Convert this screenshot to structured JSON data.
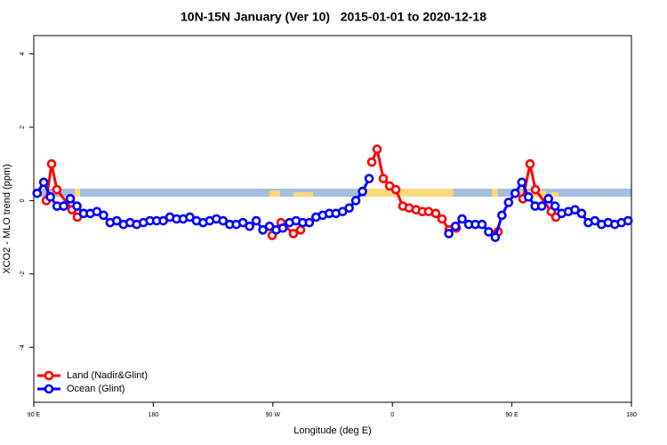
{
  "chart_data": {
    "type": "line",
    "title": "10N-15N January (Ver 10)   2015-01-01 to 2020-12-18",
    "x_label": "Longitude (deg E)",
    "y_label": "XCO2 - MLO trend (ppm)",
    "xlim": [
      90,
      540
    ],
    "ylim": [
      -5.5,
      4.5
    ],
    "xticks": [
      {
        "value": 90,
        "label": "90 E"
      },
      {
        "value": 180,
        "label": "180"
      },
      {
        "value": 270,
        "label": "90 W"
      },
      {
        "value": 360,
        "label": "0"
      },
      {
        "value": 450,
        "label": "90 E"
      },
      {
        "value": 540,
        "label": "180"
      }
    ],
    "yticks": [
      -4,
      -2,
      0,
      2,
      4
    ],
    "legend": "bottom-left",
    "series": [
      {
        "name": "Land (Nadir&Glint)",
        "color": "#ff0000",
        "x": [
          99.4,
          103.4,
          107.4,
          118.8,
          122.8,
          null,
          269.5,
          276.2,
          285.5,
          290.9,
          null,
          344.5,
          348.5,
          353.2,
          357.9,
          362.6,
          367.9,
          372.6,
          377.9,
          382.6,
          387.3,
          392.7,
          397.4,
          402.7,
          408.1,
          null,
          439.6,
          null,
          458.3,
          463.7,
          467.7,
          479.7,
          483.1
        ],
        "values": [
          0.0,
          1.0,
          0.3,
          -0.25,
          -0.45,
          null,
          -0.95,
          -0.6,
          -0.9,
          -0.8,
          null,
          1.05,
          1.4,
          0.6,
          0.4,
          0.3,
          -0.15,
          -0.2,
          -0.25,
          -0.3,
          -0.3,
          -0.35,
          -0.5,
          -0.8,
          -0.75,
          null,
          -0.85,
          null,
          0.05,
          1.0,
          0.3,
          -0.3,
          -0.45
        ]
      },
      {
        "name": "Ocean (Glint)",
        "color": "#0000ff",
        "x": [
          92.5,
          97.5,
          102.5,
          107.5,
          112.5,
          117.5,
          122.5,
          127.5,
          132.5,
          137.5,
          142.5,
          147.5,
          152.5,
          157.5,
          162.5,
          167.5,
          172.5,
          177.5,
          182.5,
          187.5,
          192.5,
          197.5,
          202.5,
          207.5,
          212.5,
          217.5,
          222.5,
          227.5,
          232.5,
          237.5,
          242.5,
          247.5,
          252.5,
          257.5,
          262.5,
          267.5,
          272.5,
          277.5,
          282.5,
          287.5,
          292.5,
          297.5,
          302.5,
          307.5,
          312.5,
          317.5,
          322.5,
          327.5,
          332.5,
          337.5,
          342.5,
          null,
          402.5,
          407.5,
          412.5,
          417.5,
          422.5,
          427.5,
          432.5,
          437.5,
          442.5,
          447.5,
          452.5,
          457.5,
          462.5,
          467.5,
          472.5,
          477.5,
          482.5,
          487.5,
          492.5,
          497.5,
          502.5,
          507.5,
          512.5,
          517.5,
          522.5,
          527.5,
          532.5,
          537.5
        ],
        "values": [
          0.2,
          0.5,
          0.1,
          -0.15,
          -0.15,
          0.05,
          -0.15,
          -0.35,
          -0.35,
          -0.3,
          -0.4,
          -0.6,
          -0.55,
          -0.65,
          -0.6,
          -0.65,
          -0.6,
          -0.55,
          -0.55,
          -0.55,
          -0.45,
          -0.5,
          -0.5,
          -0.45,
          -0.55,
          -0.6,
          -0.55,
          -0.5,
          -0.55,
          -0.65,
          -0.65,
          -0.6,
          -0.7,
          -0.55,
          -0.8,
          -0.7,
          -0.8,
          -0.75,
          -0.6,
          -0.55,
          -0.6,
          -0.6,
          -0.45,
          -0.4,
          -0.35,
          -0.35,
          -0.3,
          -0.2,
          0.0,
          0.25,
          0.6,
          null,
          -0.9,
          -0.7,
          -0.5,
          -0.65,
          -0.65,
          -0.65,
          -0.85,
          -1.0,
          -0.4,
          -0.05,
          0.2,
          0.5,
          0.1,
          -0.15,
          -0.15,
          0.05,
          -0.15,
          -0.35,
          -0.3,
          -0.25,
          -0.35,
          -0.6,
          -0.55,
          -0.65,
          -0.6,
          -0.65,
          -0.6,
          -0.55
        ]
      }
    ]
  }
}
